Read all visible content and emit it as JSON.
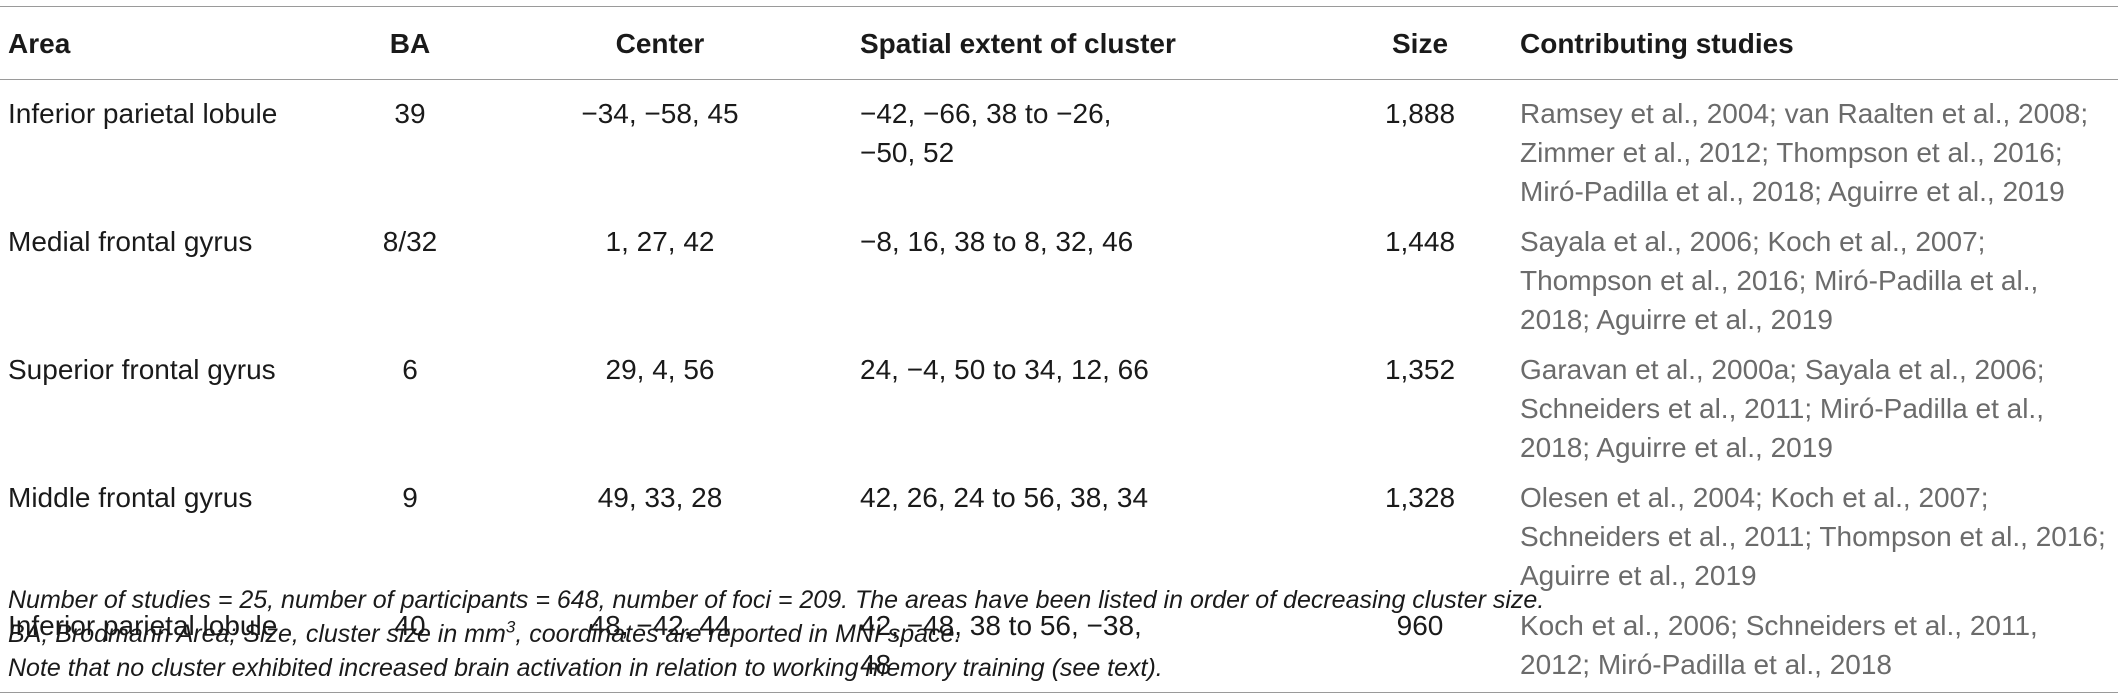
{
  "headers": {
    "area": "Area",
    "ba": "BA",
    "center": "Center",
    "extent": "Spatial extent of cluster",
    "size": "Size",
    "studies": "Contributing studies"
  },
  "rows": [
    {
      "area": "Inferior parietal lobule",
      "ba": "39",
      "center": "−34, −58, 45",
      "extent": "−42, −66, 38 to −26, −50, 52",
      "size": "1,888",
      "studies": "Ramsey et al., 2004; van Raalten et al., 2008; Zimmer et al., 2012; Thompson et al., 2016; Miró-Padilla et al., 2018; Aguirre et al., 2019"
    },
    {
      "area": "Medial frontal gyrus",
      "ba": "8/32",
      "center": "1, 27, 42",
      "extent": "−8, 16, 38 to 8, 32, 46",
      "size": "1,448",
      "studies": "Sayala et al., 2006; Koch et al., 2007; Thompson et al., 2016; Miró-Padilla et al., 2018; Aguirre et al., 2019"
    },
    {
      "area": "Superior frontal gyrus",
      "ba": "6",
      "center": "29, 4, 56",
      "extent": "24, −4, 50 to 34, 12, 66",
      "size": "1,352",
      "studies": "Garavan et al., 2000a; Sayala et al., 2006; Schneiders et al., 2011; Miró-Padilla et al., 2018; Aguirre et al., 2019"
    },
    {
      "area": "Middle frontal gyrus",
      "ba": "9",
      "center": "49, 33, 28",
      "extent": "42, 26, 24 to 56, 38, 34",
      "size": "1,328",
      "studies": "Olesen et al., 2004; Koch et al., 2007; Schneiders et al., 2011; Thompson et al., 2016; Aguirre et al., 2019"
    },
    {
      "area": "Inferior parietal lobule",
      "ba": "40",
      "center": "48, −42, 44",
      "extent": "42, −48, 38 to 56, −38, 48",
      "size": "960",
      "studies": "Koch et al., 2006; Schneiders et al., 2011, 2012; Miró-Padilla et al., 2018"
    }
  ],
  "notes": {
    "line1": "Number of studies = 25, number of participants = 648, number of foci = 209. The areas have been listed in order of decreasing cluster size.",
    "line2_pre": "BA, Brodmann Area; Size, cluster size in mm",
    "line2_sup": "3",
    "line2_post": ", coordinates are reported in MNI space.",
    "line3": "Note that no cluster exhibited increased brain activation in relation to working memory training (see text)."
  }
}
